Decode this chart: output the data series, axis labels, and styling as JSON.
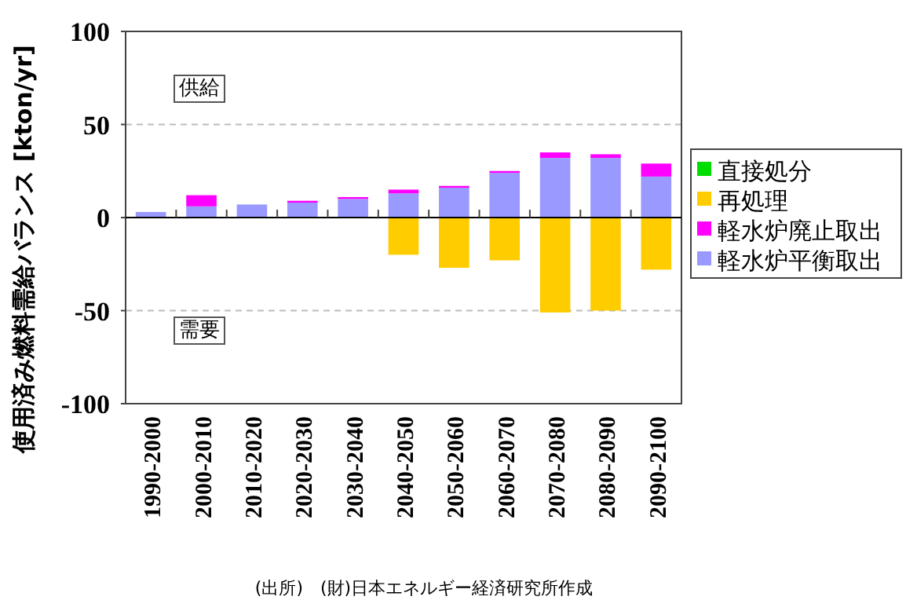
{
  "chart_data": {
    "type": "bar",
    "stacked": true,
    "ylabel": "使用済み燃料需給バランス [kton/yr]",
    "categories": [
      "1990-2000",
      "2000-2010",
      "2010-2020",
      "2020-2030",
      "2030-2040",
      "2040-2050",
      "2050-2060",
      "2060-2070",
      "2070-2080",
      "2080-2090",
      "2090-2100"
    ],
    "series": [
      {
        "name": "軽水炉平衡取出",
        "color": "#9999ff",
        "values": [
          3,
          6,
          7,
          8,
          10,
          13,
          16,
          24,
          32,
          32,
          22
        ]
      },
      {
        "name": "軽水炉廃止取出",
        "color": "#ff00ff",
        "values": [
          0,
          6,
          0,
          1,
          1,
          2,
          1,
          1,
          3,
          2,
          7
        ]
      },
      {
        "name": "再処理",
        "color": "#ffcc00",
        "values": [
          0,
          0,
          0,
          0,
          0,
          -20,
          -27,
          -23,
          -51,
          -50,
          -28
        ]
      },
      {
        "name": "直接処分",
        "color": "#00dd00",
        "values": [
          0,
          0,
          0,
          0,
          0,
          0,
          0,
          0,
          0,
          0,
          0
        ]
      }
    ],
    "ylim": [
      -100,
      100
    ],
    "yticks": [
      -100,
      -50,
      0,
      50,
      100
    ],
    "grid": "y",
    "legend": "right",
    "annotations": [
      "供給",
      "需要",
      "(出所)　(財)日本エネルギー経済研究所作成"
    ]
  }
}
